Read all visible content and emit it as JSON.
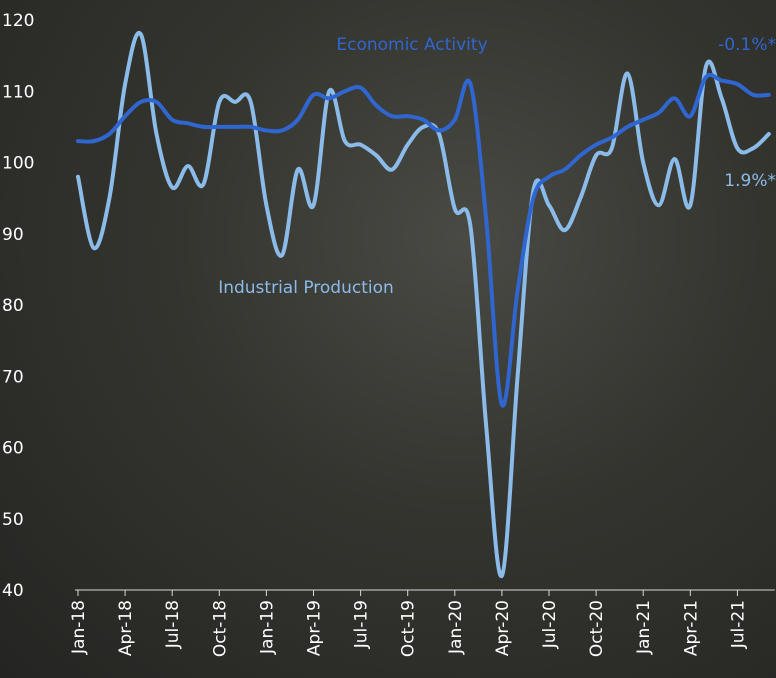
{
  "chart_data": {
    "type": "line",
    "categories": [
      "Jan-18",
      null,
      null,
      "Apr-18",
      null,
      null,
      "Jul-18",
      null,
      null,
      "Oct-18",
      null,
      null,
      "Jan-19",
      null,
      null,
      "Apr-19",
      null,
      null,
      "Jul-19",
      null,
      null,
      "Oct-19",
      null,
      null,
      "Jan-20",
      null,
      null,
      "Apr-20",
      null,
      null,
      "Jul-20",
      null,
      null,
      "Oct-20",
      null,
      null,
      "Jan-21",
      null,
      null,
      "Apr-21",
      null,
      null,
      "Jul-21",
      null,
      null
    ],
    "series": [
      {
        "name": "Economic Activity",
        "color": "#2f66d0",
        "values": [
          103,
          103,
          104,
          106.5,
          108.5,
          108.5,
          106,
          105.5,
          105,
          105,
          105,
          105,
          104.5,
          104.5,
          106,
          109.5,
          109,
          110,
          110.5,
          108,
          106.5,
          106.5,
          106,
          104.5,
          106,
          111,
          92,
          66,
          82,
          95,
          98,
          99,
          101,
          102.5,
          103.5,
          105,
          106,
          107,
          109,
          106.5,
          112,
          111.5,
          111,
          109.5,
          109.5
        ]
      },
      {
        "name": "Industrial Production",
        "color": "#8bbbe8",
        "values": [
          98,
          88,
          95,
          111,
          118,
          104,
          96.5,
          99.5,
          97,
          108.5,
          108.5,
          108.5,
          94,
          87,
          99,
          94,
          110,
          103,
          102.5,
          101,
          99,
          102.5,
          105,
          104,
          93.5,
          91,
          63,
          42,
          70,
          96,
          94,
          90.5,
          95,
          101,
          102,
          112.5,
          100,
          94,
          100.5,
          94,
          113.5,
          109,
          102,
          102,
          104
        ]
      }
    ],
    "annotations": [
      {
        "text": "-0.1%*",
        "color": "#2f66d0"
      },
      {
        "text": "1.9%*",
        "color": "#8bbbe8"
      }
    ],
    "ylim": [
      40,
      120
    ],
    "yticks": [
      40,
      50,
      60,
      70,
      80,
      90,
      100,
      110,
      120
    ]
  }
}
